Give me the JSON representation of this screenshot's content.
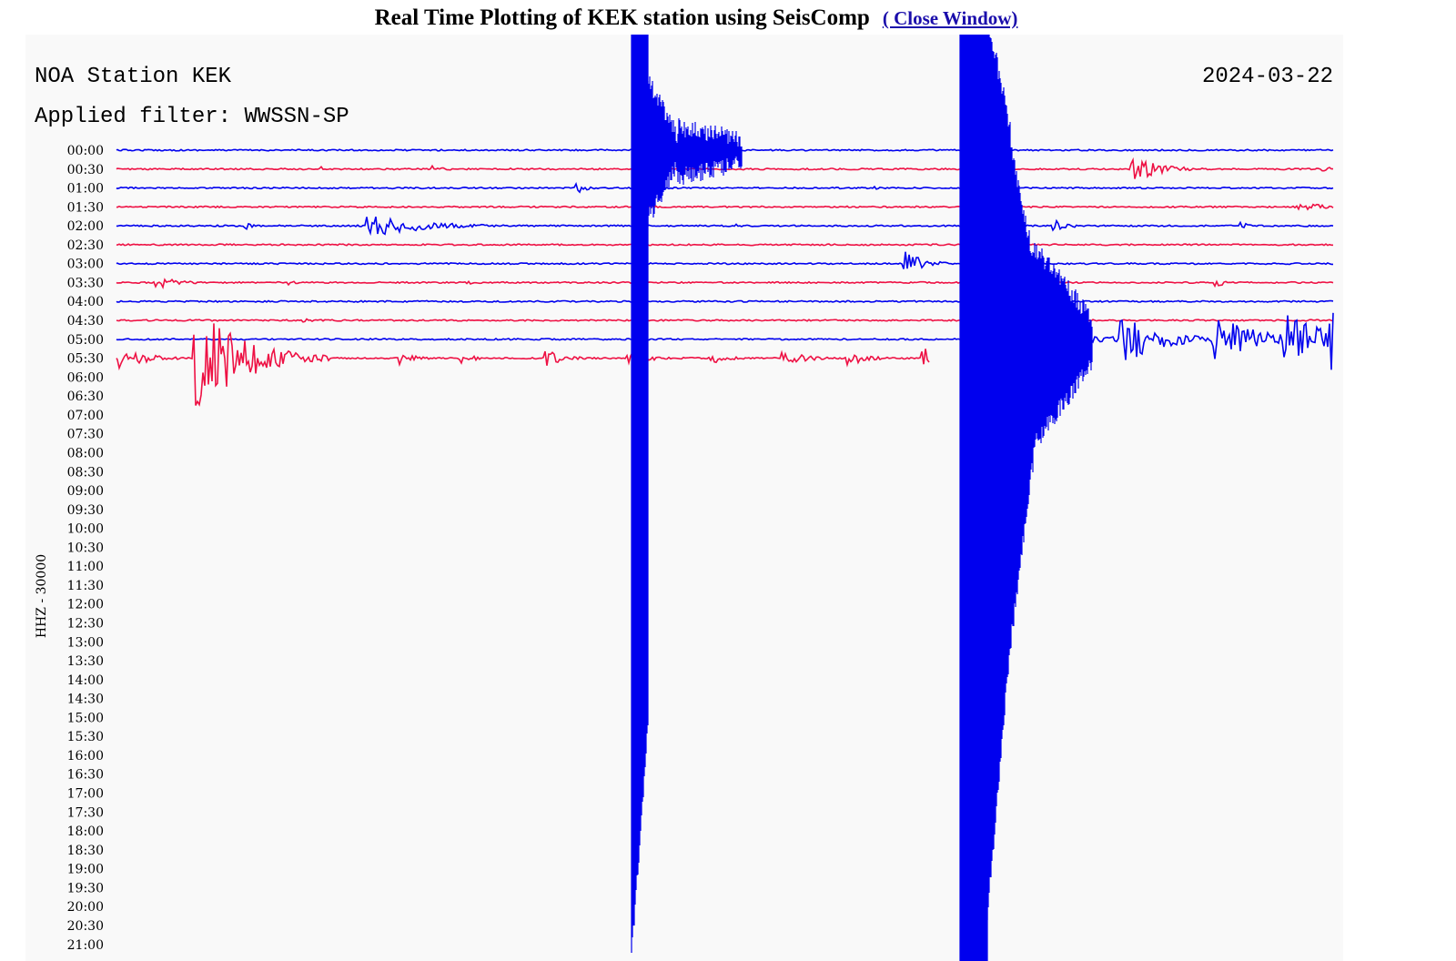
{
  "header": {
    "title": "Real Time Plotting of KEK station using SeisComp",
    "link": "( Close Window)"
  },
  "plot": {
    "station": "NOA Station KEK",
    "date": "2024-03-22",
    "filter": "Applied filter: WWSSN-SP",
    "channel": "HHZ - 30000",
    "time_labels": [
      "00:00",
      "00:30",
      "01:00",
      "01:30",
      "02:00",
      "02:30",
      "03:00",
      "03:30",
      "04:00",
      "04:30",
      "05:00",
      "05:30",
      "06:00",
      "06:30",
      "07:00",
      "07:30",
      "08:00",
      "08:30",
      "09:00",
      "09:30",
      "10:00",
      "10:30",
      "11:00",
      "11:30",
      "12:00",
      "12:30",
      "13:00",
      "13:30",
      "14:00",
      "14:30",
      "15:00",
      "15:30",
      "16:00",
      "16:30",
      "17:00",
      "17:30",
      "18:00",
      "18:30",
      "19:00",
      "19:30",
      "20:00",
      "20:30",
      "21:00"
    ]
  }
}
